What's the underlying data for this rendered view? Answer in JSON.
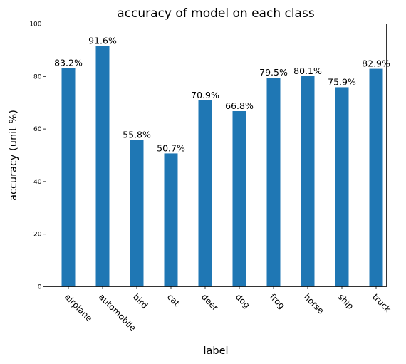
{
  "chart_data": {
    "type": "bar",
    "title": "accuracy of model on each class",
    "xlabel": "label",
    "ylabel": "accuracy (unit %)",
    "categories": [
      "airplane",
      "automobile",
      "bird",
      "cat",
      "deer",
      "dog",
      "frog",
      "horse",
      "ship",
      "truck"
    ],
    "values": [
      83.2,
      91.6,
      55.8,
      50.7,
      70.9,
      66.8,
      79.5,
      80.1,
      75.9,
      82.9
    ],
    "value_labels": [
      "83.2%",
      "91.6%",
      "55.8%",
      "50.7%",
      "70.9%",
      "66.8%",
      "79.5%",
      "80.1%",
      "75.9%",
      "82.9%"
    ],
    "ylim": [
      0,
      100
    ],
    "yticks": [
      "0",
      "20",
      "40",
      "60",
      "80",
      "100"
    ],
    "grid": false,
    "bar_color": "#1f77b4"
  }
}
